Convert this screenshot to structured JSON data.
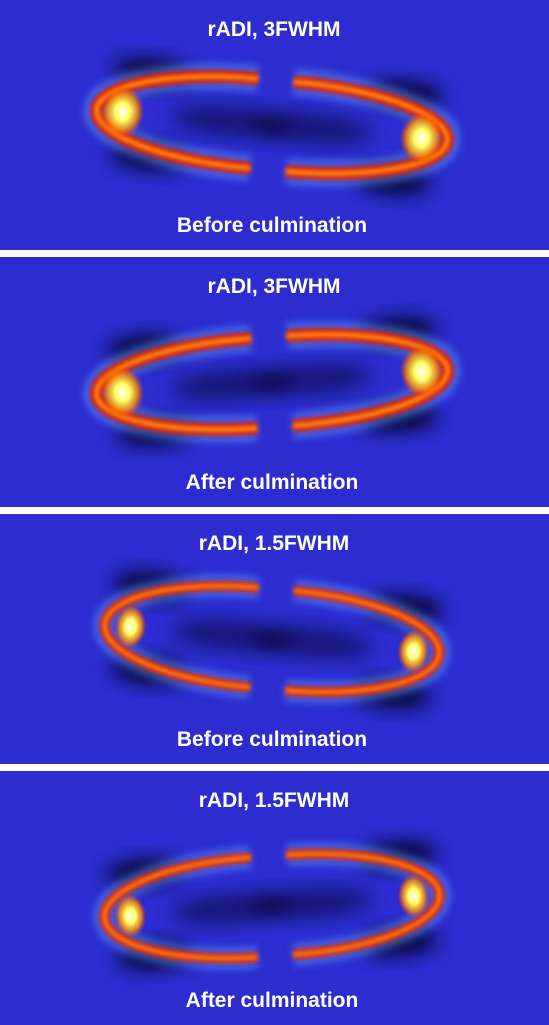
{
  "panels": [
    {
      "title": "rADI, 3FWHM",
      "caption": "Before culmination"
    },
    {
      "title": "rADI, 3FWHM",
      "caption": "After culmination"
    },
    {
      "title": "rADI, 1.5FWHM",
      "caption": "Before culmination"
    },
    {
      "title": "rADI, 1.5FWHM",
      "caption": "After culmination"
    }
  ]
}
